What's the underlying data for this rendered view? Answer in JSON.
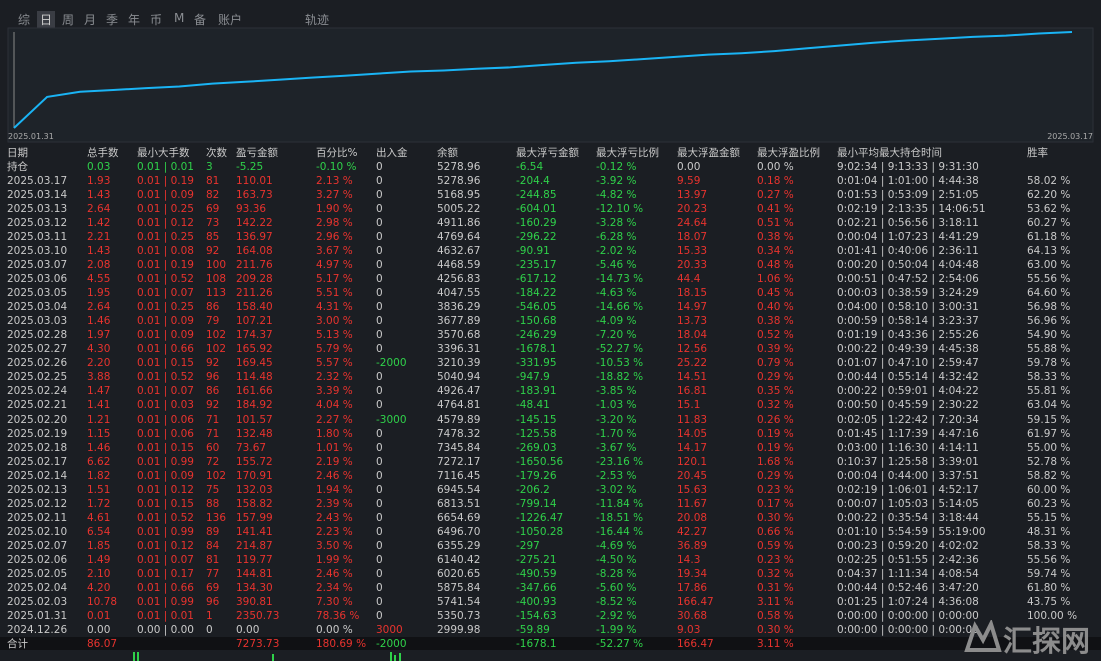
{
  "tabs": [
    "综",
    "日",
    "周",
    "月",
    "季",
    "年",
    "币",
    "M",
    "备",
    "账户",
    "轨迹"
  ],
  "chart": {
    "x_start_label": "2025.01.31",
    "x_end_label": "2025.03.17"
  },
  "table": {
    "headers": [
      "日期",
      "总手数",
      "最小大手数",
      "次数",
      "盈亏金额",
      "百分比%",
      "出入金",
      "余额",
      "最大浮亏金额",
      "最大浮亏比例",
      "最大浮盈金额",
      "最大浮盈比例",
      "最小平均最大持仓时间",
      "胜率"
    ],
    "holding": [
      "持仓",
      "0.03",
      "0.01 | 0.01",
      "3",
      "-5.25",
      "-0.10 %",
      "0",
      "5278.96",
      "-6.54",
      "-0.12 %",
      "0.00",
      "0.00 %",
      "9:02:34 | 9:13:33 | 9:31:30"
    ],
    "rows": [
      [
        "2025.03.17",
        "1.93",
        "0.01 | 0.19",
        "81",
        "110.01",
        "2.13 %",
        "0",
        "5278.96",
        "-204.4",
        "-3.92 %",
        "9.59",
        "0.18 %",
        "0:01:04 | 1:01:00 | 4:44:38",
        "58.02 %"
      ],
      [
        "2025.03.14",
        "1.43",
        "0.01 | 0.09",
        "82",
        "163.73",
        "3.27 %",
        "0",
        "5168.95",
        "-244.85",
        "-4.82 %",
        "13.97",
        "0.27 %",
        "0:01:53 | 0:53:09 | 2:51:05",
        "62.20 %"
      ],
      [
        "2025.03.13",
        "2.64",
        "0.01 | 0.25",
        "69",
        "93.36",
        "1.90 %",
        "0",
        "5005.22",
        "-604.01",
        "-12.10 %",
        "20.23",
        "0.41 %",
        "0:02:19 | 2:13:35 | 14:06:51",
        "53.62 %"
      ],
      [
        "2025.03.12",
        "1.42",
        "0.01 | 0.12",
        "73",
        "142.22",
        "2.98 %",
        "0",
        "4911.86",
        "-160.29",
        "-3.28 %",
        "24.64",
        "0.51 %",
        "0:02:21 | 0:56:56 | 3:18:11",
        "60.27 %"
      ],
      [
        "2025.03.11",
        "2.21",
        "0.01 | 0.25",
        "85",
        "136.97",
        "2.96 %",
        "0",
        "4769.64",
        "-296.22",
        "-6.28 %",
        "18.07",
        "0.38 %",
        "0:00:04 | 1:07:23 | 4:41:29",
        "61.18 %"
      ],
      [
        "2025.03.10",
        "1.43",
        "0.01 | 0.08",
        "92",
        "164.08",
        "3.67 %",
        "0",
        "4632.67",
        "-90.91",
        "-2.02 %",
        "15.33",
        "0.34 %",
        "0:01:41 | 0:40:06 | 2:36:11",
        "64.13 %"
      ],
      [
        "2025.03.07",
        "2.08",
        "0.01 | 0.19",
        "100",
        "211.76",
        "4.97 %",
        "0",
        "4468.59",
        "-235.17",
        "-5.46 %",
        "20.33",
        "0.48 %",
        "0:00:20 | 0:50:04 | 4:04:48",
        "63.00 %"
      ],
      [
        "2025.03.06",
        "4.55",
        "0.01 | 0.52",
        "108",
        "209.28",
        "5.17 %",
        "0",
        "4256.83",
        "-617.12",
        "-14.73 %",
        "44.4",
        "1.06 %",
        "0:00:51 | 0:47:52 | 2:54:06",
        "55.56 %"
      ],
      [
        "2025.03.05",
        "1.95",
        "0.01 | 0.07",
        "113",
        "211.26",
        "5.51 %",
        "0",
        "4047.55",
        "-184.22",
        "-4.63 %",
        "18.15",
        "0.45 %",
        "0:00:03 | 0:38:59 | 3:24:29",
        "64.60 %"
      ],
      [
        "2025.03.04",
        "2.64",
        "0.01 | 0.25",
        "86",
        "158.40",
        "4.31 %",
        "0",
        "3836.29",
        "-546.05",
        "-14.66 %",
        "14.97",
        "0.40 %",
        "0:04:00 | 0:58:10 | 3:00:31",
        "56.98 %"
      ],
      [
        "2025.03.03",
        "1.46",
        "0.01 | 0.09",
        "79",
        "107.21",
        "3.00 %",
        "0",
        "3677.89",
        "-150.68",
        "-4.09 %",
        "13.73",
        "0.38 %",
        "0:00:59 | 0:58:14 | 3:23:37",
        "56.96 %"
      ],
      [
        "2025.02.28",
        "1.97",
        "0.01 | 0.09",
        "102",
        "174.37",
        "5.13 %",
        "0",
        "3570.68",
        "-246.29",
        "-7.20 %",
        "18.04",
        "0.52 %",
        "0:01:19 | 0:43:36 | 2:55:26",
        "54.90 %"
      ],
      [
        "2025.02.27",
        "4.30",
        "0.01 | 0.66",
        "102",
        "165.92",
        "5.79 %",
        "0",
        "3396.31",
        "-1678.1",
        "-52.27 %",
        "12.56",
        "0.39 %",
        "0:00:22 | 0:49:39 | 4:45:38",
        "55.88 %"
      ],
      [
        "2025.02.26",
        "2.20",
        "0.01 | 0.15",
        "92",
        "169.45",
        "5.57 %",
        "-2000",
        "3210.39",
        "-331.95",
        "-10.53 %",
        "25.22",
        "0.79 %",
        "0:01:07 | 0:47:10 | 2:59:47",
        "59.78 %"
      ],
      [
        "2025.02.25",
        "3.88",
        "0.01 | 0.52",
        "96",
        "114.48",
        "2.32 %",
        "0",
        "5040.94",
        "-947.9",
        "-18.82 %",
        "14.51",
        "0.29 %",
        "0:00:44 | 0:55:14 | 4:32:42",
        "58.33 %"
      ],
      [
        "2025.02.24",
        "1.47",
        "0.01 | 0.07",
        "86",
        "161.66",
        "3.39 %",
        "0",
        "4926.47",
        "-183.91",
        "-3.85 %",
        "16.81",
        "0.35 %",
        "0:00:22 | 0:59:01 | 4:04:22",
        "55.81 %"
      ],
      [
        "2025.02.21",
        "1.41",
        "0.01 | 0.03",
        "92",
        "184.92",
        "4.04 %",
        "0",
        "4764.81",
        "-48.41",
        "-1.03 %",
        "15.1",
        "0.32 %",
        "0:00:50 | 0:45:59 | 2:30:22",
        "63.04 %"
      ],
      [
        "2025.02.20",
        "1.21",
        "0.01 | 0.06",
        "71",
        "101.57",
        "2.27 %",
        "-3000",
        "4579.89",
        "-145.15",
        "-3.20 %",
        "11.83",
        "0.26 %",
        "0:02:05 | 1:22:42 | 7:20:34",
        "59.15 %"
      ],
      [
        "2025.02.19",
        "1.15",
        "0.01 | 0.06",
        "71",
        "132.48",
        "1.80 %",
        "0",
        "7478.32",
        "-125.58",
        "-1.70 %",
        "14.05",
        "0.19 %",
        "0:01:45 | 1:17:39 | 4:47:16",
        "61.97 %"
      ],
      [
        "2025.02.18",
        "1.46",
        "0.01 | 0.15",
        "60",
        "73.67",
        "1.01 %",
        "0",
        "7345.84",
        "-269.03",
        "-3.67 %",
        "14.17",
        "0.19 %",
        "0:03:00 | 1:16:30 | 4:14:11",
        "55.00 %"
      ],
      [
        "2025.02.17",
        "6.62",
        "0.01 | 0.99",
        "72",
        "155.72",
        "2.19 %",
        "0",
        "7272.17",
        "-1650.56",
        "-23.16 %",
        "120.1",
        "1.68 %",
        "0:10:37 | 1:25:58 | 3:39:01",
        "52.78 %"
      ],
      [
        "2025.02.14",
        "1.82",
        "0.01 | 0.09",
        "102",
        "170.91",
        "2.46 %",
        "0",
        "7116.45",
        "-179.26",
        "-2.53 %",
        "20.45",
        "0.29 %",
        "0:00:04 | 0:44:00 | 3:37:51",
        "58.82 %"
      ],
      [
        "2025.02.13",
        "1.51",
        "0.01 | 0.12",
        "75",
        "132.03",
        "1.94 %",
        "0",
        "6945.54",
        "-206.2",
        "-3.02 %",
        "15.63",
        "0.23 %",
        "0:02:19 | 1:06:01 | 4:52:17",
        "60.00 %"
      ],
      [
        "2025.02.12",
        "1.72",
        "0.01 | 0.15",
        "88",
        "158.82",
        "2.39 %",
        "0",
        "6813.51",
        "-799.14",
        "-11.84 %",
        "11.67",
        "0.17 %",
        "0:00:07 | 1:05:03 | 5:14:05",
        "60.23 %"
      ],
      [
        "2025.02.11",
        "4.61",
        "0.01 | 0.52",
        "136",
        "157.99",
        "2.43 %",
        "0",
        "6654.69",
        "-1226.47",
        "-18.51 %",
        "20.08",
        "0.30 %",
        "0:00:22 | 0:35:54 | 3:18:44",
        "55.15 %"
      ],
      [
        "2025.02.10",
        "6.54",
        "0.01 | 0.99",
        "89",
        "141.41",
        "2.23 %",
        "0",
        "6496.70",
        "-1050.28",
        "-16.44 %",
        "42.27",
        "0.66 %",
        "0:01:10 | 5:54:59 | 55:19:00",
        "48.31 %"
      ],
      [
        "2025.02.07",
        "1.85",
        "0.01 | 0.12",
        "84",
        "214.87",
        "3.50 %",
        "0",
        "6355.29",
        "-297",
        "-4.69 %",
        "36.89",
        "0.59 %",
        "0:00:23 | 0:59:20 | 4:02:02",
        "58.33 %"
      ],
      [
        "2025.02.06",
        "1.49",
        "0.01 | 0.07",
        "81",
        "119.77",
        "1.99 %",
        "0",
        "6140.42",
        "-275.21",
        "-4.50 %",
        "14.3",
        "0.23 %",
        "0:02:25 | 0:51:55 | 2:42:36",
        "55.56 %"
      ],
      [
        "2025.02.05",
        "2.10",
        "0.01 | 0.17",
        "77",
        "144.81",
        "2.46 %",
        "0",
        "6020.65",
        "-490.59",
        "-8.28 %",
        "19.34",
        "0.32 %",
        "0:04:37 | 1:11:34 | 4:08:54",
        "59.74 %"
      ],
      [
        "2025.02.04",
        "4.20",
        "0.01 | 0.66",
        "69",
        "134.30",
        "2.34 %",
        "0",
        "5875.84",
        "-347.66",
        "-5.60 %",
        "17.86",
        "0.31 %",
        "0:00:44 | 0:52:46 | 3:47:20",
        "61.80 %"
      ],
      [
        "2025.02.03",
        "10.78",
        "0.01 | 0.99",
        "96",
        "390.81",
        "7.30 %",
        "0",
        "5741.54",
        "-400.93",
        "-8.52 %",
        "166.47",
        "3.11 %",
        "0:01:25 | 1:07:24 | 4:36:08",
        "43.75 %"
      ],
      [
        "2025.01.31",
        "0.01",
        "0.01 | 0.01",
        "1",
        "2350.73",
        "78.36 %",
        "0",
        "5350.73",
        "-154.63",
        "-2.92 %",
        "30.68",
        "0.58 %",
        "0:00:00 | 0:00:00 | 0:00:00",
        "100.00 %"
      ],
      [
        "2024.12.26",
        "0.00",
        "0.00 | 0.00",
        "0",
        "0.00",
        "0.00 %",
        "3000",
        "2999.98",
        "-59.89",
        "-1.99 %",
        "9.03",
        "0.30 %",
        "0:00:00 | 0:00:00 | 0:00:00"
      ]
    ],
    "total": {
      "label": "合计",
      "lots": "86.07",
      "profit": "7273.73",
      "percent": "180.69 %",
      "deposit": "-2000",
      "max_float_loss": "-1678.1",
      "max_float_loss_pct": "-52.27 %",
      "max_float_profit": "166.47",
      "max_float_profit_pct": "3.11 %"
    }
  },
  "watermark": "汇探网"
}
